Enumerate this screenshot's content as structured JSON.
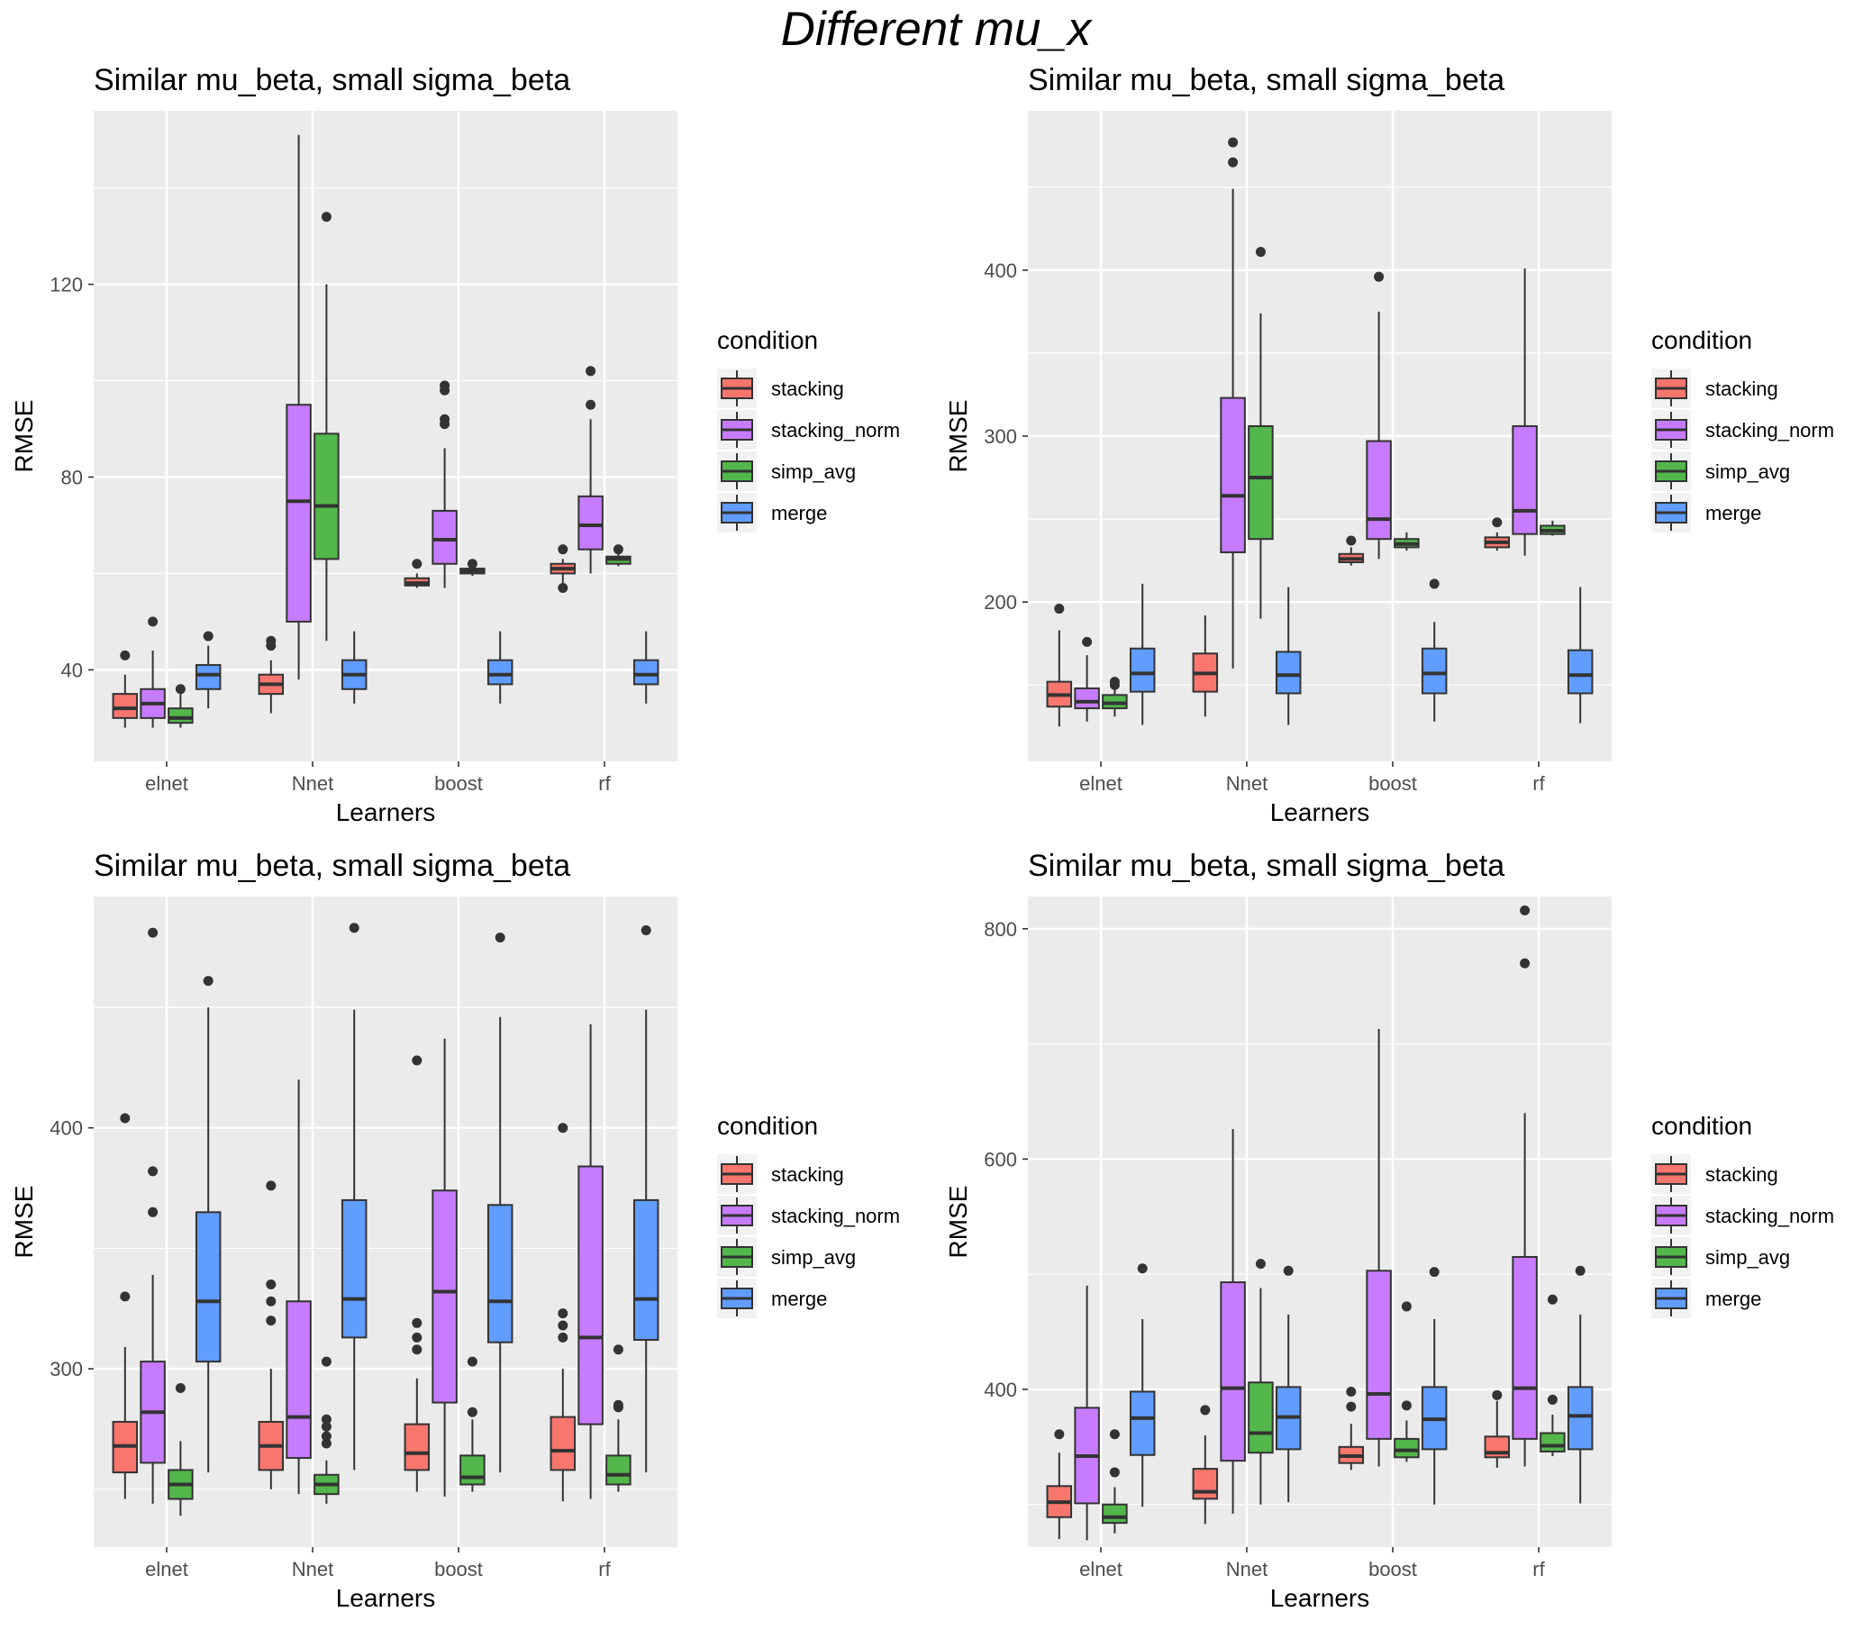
{
  "main_title": "Different mu_x",
  "legend": {
    "title": "condition",
    "entries": [
      "stacking",
      "stacking_norm",
      "simp_avg",
      "merge"
    ],
    "colors": [
      "#F8766D",
      "#C77CFF",
      "#53B74C",
      "#619CFF"
    ]
  },
  "style": {
    "panel_bg": "#EBEBEB",
    "grid": "#FFFFFF",
    "axis_text": "#4D4D4D"
  },
  "chart_data": [
    {
      "type": "box",
      "title": "Similar mu_beta, small sigma_beta",
      "xlabel": "Learners",
      "ylabel": "RMSE",
      "categories": [
        "elnet",
        "Nnet",
        "boost",
        "rf"
      ],
      "ylim": [
        21,
        156
      ],
      "yticks": [
        40,
        80,
        120
      ],
      "grid": true,
      "legend_position": "right",
      "groups": [
        [
          {
            "series": "stacking",
            "min": 28,
            "q1": 30,
            "median": 32,
            "q3": 35,
            "max": 39,
            "outliers": [
              43
            ]
          },
          {
            "series": "stacking_norm",
            "min": 28,
            "q1": 30,
            "median": 33,
            "q3": 36,
            "max": 44,
            "outliers": [
              50
            ]
          },
          {
            "series": "simp_avg",
            "min": 28,
            "q1": 29,
            "median": 30,
            "q3": 32,
            "max": 35,
            "outliers": [
              36
            ]
          },
          {
            "series": "merge",
            "min": 32,
            "q1": 36,
            "median": 39,
            "q3": 41,
            "max": 45,
            "outliers": [
              47
            ]
          }
        ],
        [
          {
            "series": "stacking",
            "min": 31,
            "q1": 35,
            "median": 37,
            "q3": 39,
            "max": 42,
            "outliers": [
              45,
              46
            ]
          },
          {
            "series": "stacking_norm",
            "min": 38,
            "q1": 50,
            "median": 75,
            "q3": 95,
            "max": 151,
            "outliers": []
          },
          {
            "series": "simp_avg",
            "min": 46,
            "q1": 63,
            "median": 74,
            "q3": 89,
            "max": 120,
            "outliers": [
              134
            ]
          },
          {
            "series": "merge",
            "min": 33,
            "q1": 36,
            "median": 39,
            "q3": 42,
            "max": 48,
            "outliers": []
          }
        ],
        [
          {
            "series": "stacking",
            "min": 57,
            "q1": 57.5,
            "median": 58,
            "q3": 59,
            "max": 60,
            "outliers": [
              62
            ]
          },
          {
            "series": "stacking_norm",
            "min": 57,
            "q1": 62,
            "median": 67,
            "q3": 73,
            "max": 86,
            "outliers": [
              91,
              92,
              98,
              99
            ]
          },
          {
            "series": "simp_avg",
            "min": 59.5,
            "q1": 60,
            "median": 60.5,
            "q3": 61,
            "max": 61.5,
            "outliers": [
              62
            ]
          },
          {
            "series": "merge",
            "min": 33,
            "q1": 37,
            "median": 39,
            "q3": 42,
            "max": 48,
            "outliers": []
          }
        ],
        [
          {
            "series": "stacking",
            "min": 58,
            "q1": 60,
            "median": 61,
            "q3": 62,
            "max": 63,
            "outliers": [
              65,
              57
            ]
          },
          {
            "series": "stacking_norm",
            "min": 60,
            "q1": 65,
            "median": 70,
            "q3": 76,
            "max": 92,
            "outliers": [
              95,
              102
            ]
          },
          {
            "series": "simp_avg",
            "min": 61.5,
            "q1": 62,
            "median": 63,
            "q3": 63.5,
            "max": 64,
            "outliers": [
              65
            ]
          },
          {
            "series": "merge",
            "min": 33,
            "q1": 37,
            "median": 39,
            "q3": 42,
            "max": 48,
            "outliers": []
          }
        ]
      ]
    },
    {
      "type": "box",
      "title": "Similar mu_beta, small sigma_beta",
      "xlabel": "Learners",
      "ylabel": "RMSE",
      "categories": [
        "elnet",
        "Nnet",
        "boost",
        "rf"
      ],
      "ylim": [
        104,
        496
      ],
      "yticks": [
        200,
        300,
        400
      ],
      "grid": true,
      "legend_position": "right",
      "groups": [
        [
          {
            "series": "stacking",
            "min": 125,
            "q1": 137,
            "median": 144,
            "q3": 152,
            "max": 183,
            "outliers": [
              196
            ]
          },
          {
            "series": "stacking_norm",
            "min": 128,
            "q1": 136,
            "median": 140,
            "q3": 148,
            "max": 168,
            "outliers": [
              176
            ]
          },
          {
            "series": "simp_avg",
            "min": 131,
            "q1": 136,
            "median": 139,
            "q3": 144,
            "max": 148,
            "outliers": [
              150,
              152
            ]
          },
          {
            "series": "merge",
            "min": 126,
            "q1": 146,
            "median": 157,
            "q3": 172,
            "max": 211,
            "outliers": []
          }
        ],
        [
          {
            "series": "stacking",
            "min": 131,
            "q1": 146,
            "median": 157,
            "q3": 169,
            "max": 192,
            "outliers": []
          },
          {
            "series": "stacking_norm",
            "min": 160,
            "q1": 230,
            "median": 264,
            "q3": 323,
            "max": 449,
            "outliers": [
              465,
              477
            ]
          },
          {
            "series": "simp_avg",
            "min": 190,
            "q1": 238,
            "median": 275,
            "q3": 306,
            "max": 374,
            "outliers": [
              411
            ]
          },
          {
            "series": "merge",
            "min": 126,
            "q1": 145,
            "median": 156,
            "q3": 170,
            "max": 209,
            "outliers": []
          }
        ],
        [
          {
            "series": "stacking",
            "min": 222,
            "q1": 224,
            "median": 226,
            "q3": 229,
            "max": 233,
            "outliers": [
              237
            ]
          },
          {
            "series": "stacking_norm",
            "min": 226,
            "q1": 238,
            "median": 250,
            "q3": 297,
            "max": 375,
            "outliers": [
              396
            ]
          },
          {
            "series": "simp_avg",
            "min": 231,
            "q1": 233,
            "median": 235,
            "q3": 238,
            "max": 242,
            "outliers": []
          },
          {
            "series": "merge",
            "min": 128,
            "q1": 145,
            "median": 157,
            "q3": 172,
            "max": 188,
            "outliers": [
              211
            ]
          }
        ],
        [
          {
            "series": "stacking",
            "min": 231,
            "q1": 233,
            "median": 236,
            "q3": 239,
            "max": 242,
            "outliers": [
              248
            ]
          },
          {
            "series": "stacking_norm",
            "min": 228,
            "q1": 241,
            "median": 255,
            "q3": 306,
            "max": 401,
            "outliers": []
          },
          {
            "series": "simp_avg",
            "min": 240,
            "q1": 241,
            "median": 243,
            "q3": 246,
            "max": 249,
            "outliers": []
          },
          {
            "series": "merge",
            "min": 127,
            "q1": 145,
            "median": 156,
            "q3": 171,
            "max": 209,
            "outliers": []
          }
        ]
      ]
    },
    {
      "type": "box",
      "title": "Similar mu_beta, small sigma_beta",
      "xlabel": "Learners",
      "ylabel": "RMSE",
      "categories": [
        "elnet",
        "Nnet",
        "boost",
        "rf"
      ],
      "ylim": [
        226,
        496
      ],
      "yticks": [
        300,
        400
      ],
      "grid": true,
      "legend_position": "right",
      "groups": [
        [
          {
            "series": "stacking",
            "min": 246,
            "q1": 257,
            "median": 268,
            "q3": 278,
            "max": 309,
            "outliers": [
              404,
              330
            ]
          },
          {
            "series": "stacking_norm",
            "min": 244,
            "q1": 261,
            "median": 282,
            "q3": 303,
            "max": 339,
            "outliers": [
              365,
              382,
              481
            ]
          },
          {
            "series": "simp_avg",
            "min": 239,
            "q1": 246,
            "median": 252,
            "q3": 258,
            "max": 270,
            "outliers": [
              292
            ]
          },
          {
            "series": "merge",
            "min": 257,
            "q1": 303,
            "median": 328,
            "q3": 365,
            "max": 450,
            "outliers": [
              461
            ]
          }
        ],
        [
          {
            "series": "stacking",
            "min": 250,
            "q1": 258,
            "median": 268,
            "q3": 278,
            "max": 300,
            "outliers": [
              320,
              328,
              335,
              376
            ]
          },
          {
            "series": "stacking_norm",
            "min": 248,
            "q1": 263,
            "median": 280,
            "q3": 328,
            "max": 420,
            "outliers": []
          },
          {
            "series": "simp_avg",
            "min": 244,
            "q1": 248,
            "median": 252,
            "q3": 256,
            "max": 262,
            "outliers": [
              269,
              272,
              276,
              279,
              303
            ]
          },
          {
            "series": "merge",
            "min": 258,
            "q1": 313,
            "median": 329,
            "q3": 370,
            "max": 449,
            "outliers": [
              483
            ]
          }
        ],
        [
          {
            "series": "stacking",
            "min": 249,
            "q1": 258,
            "median": 265,
            "q3": 277,
            "max": 296,
            "outliers": [
              308,
              313,
              319,
              428
            ]
          },
          {
            "series": "stacking_norm",
            "min": 247,
            "q1": 286,
            "median": 332,
            "q3": 374,
            "max": 437,
            "outliers": []
          },
          {
            "series": "simp_avg",
            "min": 249,
            "q1": 252,
            "median": 255,
            "q3": 264,
            "max": 279,
            "outliers": [
              282,
              303
            ]
          },
          {
            "series": "merge",
            "min": 257,
            "q1": 311,
            "median": 328,
            "q3": 368,
            "max": 446,
            "outliers": [
              479
            ]
          }
        ],
        [
          {
            "series": "stacking",
            "min": 245,
            "q1": 258,
            "median": 266,
            "q3": 280,
            "max": 300,
            "outliers": [
              313,
              318,
              323,
              400
            ]
          },
          {
            "series": "stacking_norm",
            "min": 246,
            "q1": 277,
            "median": 313,
            "q3": 384,
            "max": 443,
            "outliers": []
          },
          {
            "series": "simp_avg",
            "min": 249,
            "q1": 252,
            "median": 256,
            "q3": 264,
            "max": 279,
            "outliers": [
              284,
              285,
              308
            ]
          },
          {
            "series": "merge",
            "min": 257,
            "q1": 312,
            "median": 329,
            "q3": 370,
            "max": 449,
            "outliers": [
              482
            ]
          }
        ]
      ]
    },
    {
      "type": "box",
      "title": "Similar mu_beta, small sigma_beta",
      "xlabel": "Learners",
      "ylabel": "RMSE",
      "categories": [
        "elnet",
        "Nnet",
        "boost",
        "rf"
      ],
      "ylim": [
        263,
        828
      ],
      "yticks": [
        400,
        600,
        800
      ],
      "grid": true,
      "legend_position": "right",
      "groups": [
        [
          {
            "series": "stacking",
            "min": 270,
            "q1": 289,
            "median": 302,
            "q3": 316,
            "max": 345,
            "outliers": [
              361
            ]
          },
          {
            "series": "stacking_norm",
            "min": 269,
            "q1": 301,
            "median": 342,
            "q3": 384,
            "max": 490,
            "outliers": []
          },
          {
            "series": "simp_avg",
            "min": 275,
            "q1": 284,
            "median": 289,
            "q3": 300,
            "max": 315,
            "outliers": [
              328,
              361
            ]
          },
          {
            "series": "merge",
            "min": 298,
            "q1": 343,
            "median": 375,
            "q3": 398,
            "max": 461,
            "outliers": [
              505
            ]
          }
        ],
        [
          {
            "series": "stacking",
            "min": 283,
            "q1": 305,
            "median": 311,
            "q3": 331,
            "max": 360,
            "outliers": [
              382
            ]
          },
          {
            "series": "stacking_norm",
            "min": 292,
            "q1": 338,
            "median": 401,
            "q3": 493,
            "max": 626,
            "outliers": []
          },
          {
            "series": "simp_avg",
            "min": 300,
            "q1": 345,
            "median": 362,
            "q3": 406,
            "max": 488,
            "outliers": [
              509
            ]
          },
          {
            "series": "merge",
            "min": 302,
            "q1": 348,
            "median": 376,
            "q3": 402,
            "max": 465,
            "outliers": [
              503
            ]
          }
        ],
        [
          {
            "series": "stacking",
            "min": 330,
            "q1": 336,
            "median": 342,
            "q3": 350,
            "max": 370,
            "outliers": [
              385,
              398
            ]
          },
          {
            "series": "stacking_norm",
            "min": 333,
            "q1": 357,
            "median": 396,
            "q3": 503,
            "max": 713,
            "outliers": []
          },
          {
            "series": "simp_avg",
            "min": 337,
            "q1": 341,
            "median": 347,
            "q3": 357,
            "max": 373,
            "outliers": [
              386,
              472
            ]
          },
          {
            "series": "merge",
            "min": 300,
            "q1": 348,
            "median": 374,
            "q3": 402,
            "max": 461,
            "outliers": [
              502
            ]
          }
        ],
        [
          {
            "series": "stacking",
            "min": 332,
            "q1": 341,
            "median": 345,
            "q3": 359,
            "max": 390,
            "outliers": [
              395
            ]
          },
          {
            "series": "stacking_norm",
            "min": 333,
            "q1": 357,
            "median": 401,
            "q3": 515,
            "max": 640,
            "outliers": [
              770,
              816
            ]
          },
          {
            "series": "simp_avg",
            "min": 342,
            "q1": 346,
            "median": 351,
            "q3": 362,
            "max": 378,
            "outliers": [
              391,
              478
            ]
          },
          {
            "series": "merge",
            "min": 301,
            "q1": 348,
            "median": 377,
            "q3": 402,
            "max": 465,
            "outliers": [
              503
            ]
          }
        ]
      ]
    }
  ]
}
